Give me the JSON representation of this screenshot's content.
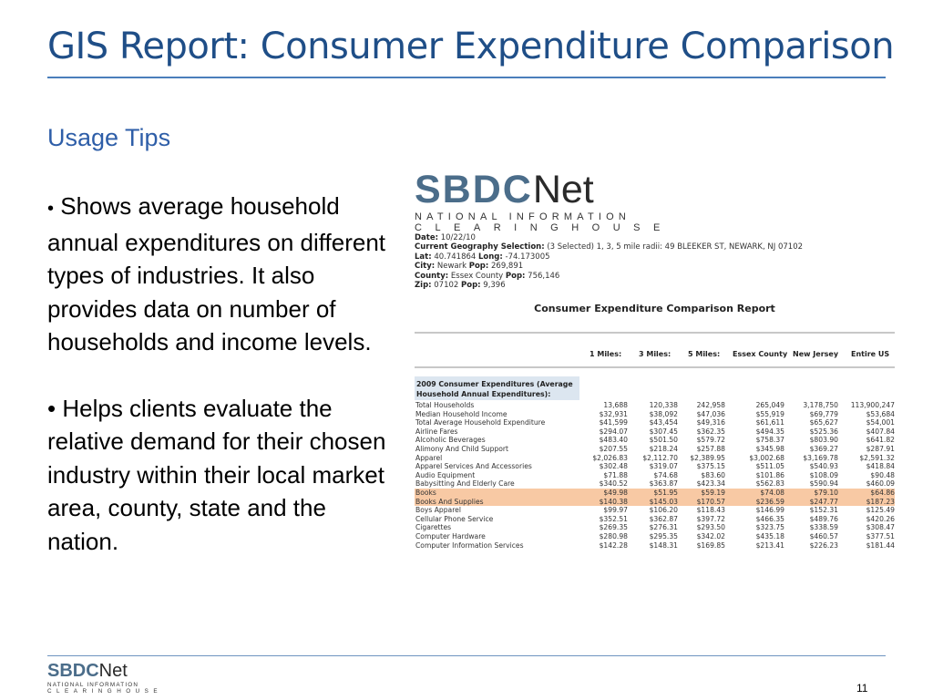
{
  "slide": {
    "title": "GIS Report: Consumer Expenditure Comparison",
    "usage_heading": "Usage Tips",
    "bullets": [
      "Shows average household annual expenditures on different types of industries. It also provides data on number of households and income levels.",
      "Helps clients evaluate the relative demand for their chosen industry within their local market area, county, state and the nation."
    ],
    "page_number": "11"
  },
  "logo": {
    "main_bold": "SBDC",
    "main_light": "Net",
    "line1": "NATIONAL INFORMATION",
    "line2": "CLEARINGHOUSE"
  },
  "report": {
    "meta": [
      {
        "label": "Date:",
        "value": " 10/22/10"
      },
      {
        "label": "Current Geography Selection:",
        "value": " (3 Selected) 1, 3, 5 mile radii: 49 BLEEKER ST, NEWARK, NJ 07102"
      },
      {
        "label": "Lat:",
        "value": " 40.741864 ",
        "label2": "Long:",
        "value2": " -74.173005"
      },
      {
        "label": "City:",
        "value": " Newark ",
        "label2": "Pop:",
        "value2": " 269,891"
      },
      {
        "label": "County:",
        "value": " Essex County ",
        "label2": "Pop:",
        "value2": " 756,146"
      },
      {
        "label": "Zip:",
        "value": " 07102 ",
        "label2": "Pop:",
        "value2": " 9,396"
      }
    ],
    "title": "Consumer Expenditure Comparison Report",
    "columns": [
      "1 Miles:",
      "3 Miles:",
      "5 Miles:",
      "Essex County",
      "New Jersey",
      "Entire US"
    ],
    "section_heading": "2009 Consumer Expenditures (Average Household Annual Expenditures):",
    "rows": [
      {
        "label": "Total Households",
        "values": [
          "13,688",
          "120,338",
          "242,958",
          "265,049",
          "3,178,750",
          "113,900,247"
        ],
        "highlight": false
      },
      {
        "label": "Median Household Income",
        "values": [
          "$32,931",
          "$38,092",
          "$47,036",
          "$55,919",
          "$69,779",
          "$53,684"
        ],
        "highlight": false
      },
      {
        "label": "Total Average Household Expenditure",
        "values": [
          "$41,599",
          "$43,454",
          "$49,316",
          "$61,611",
          "$65,627",
          "$54,001"
        ],
        "highlight": false
      },
      {
        "label": "Airline Fares",
        "values": [
          "$294.07",
          "$307.45",
          "$362.35",
          "$494.35",
          "$525.36",
          "$407.84"
        ],
        "highlight": false
      },
      {
        "label": "Alcoholic Beverages",
        "values": [
          "$483.40",
          "$501.50",
          "$579.72",
          "$758.37",
          "$803.90",
          "$641.82"
        ],
        "highlight": false
      },
      {
        "label": "Alimony And Child Support",
        "values": [
          "$207.55",
          "$218.24",
          "$257.88",
          "$345.98",
          "$369.27",
          "$287.91"
        ],
        "highlight": false
      },
      {
        "label": "Apparel",
        "values": [
          "$2,026.83",
          "$2,112.70",
          "$2,389.95",
          "$3,002.68",
          "$3,169.78",
          "$2,591.32"
        ],
        "highlight": false
      },
      {
        "label": "Apparel Services And Accessories",
        "values": [
          "$302.48",
          "$319.07",
          "$375.15",
          "$511.05",
          "$540.93",
          "$418.84"
        ],
        "highlight": false
      },
      {
        "label": "Audio Equipment",
        "values": [
          "$71.88",
          "$74.68",
          "$83.60",
          "$101.86",
          "$108.09",
          "$90.48"
        ],
        "highlight": false
      },
      {
        "label": "Babysitting And Elderly Care",
        "values": [
          "$340.52",
          "$363.87",
          "$423.34",
          "$562.83",
          "$590.94",
          "$460.09"
        ],
        "highlight": false
      },
      {
        "label": "Books",
        "values": [
          "$49.98",
          "$51.95",
          "$59.19",
          "$74.08",
          "$79.10",
          "$64.86"
        ],
        "highlight": true
      },
      {
        "label": "Books And Supplies",
        "values": [
          "$140.38",
          "$145.03",
          "$170.57",
          "$236.59",
          "$247.77",
          "$187.23"
        ],
        "highlight": true
      },
      {
        "label": "Boys Apparel",
        "values": [
          "$99.97",
          "$106.20",
          "$118.43",
          "$146.99",
          "$152.31",
          "$125.49"
        ],
        "highlight": false
      },
      {
        "label": "Cellular Phone Service",
        "values": [
          "$352.51",
          "$362.87",
          "$397.72",
          "$466.35",
          "$489.76",
          "$420.26"
        ],
        "highlight": false
      },
      {
        "label": "Cigarettes",
        "values": [
          "$269.35",
          "$276.31",
          "$293.50",
          "$323.75",
          "$338.59",
          "$308.47"
        ],
        "highlight": false
      },
      {
        "label": "Computer Hardware",
        "values": [
          "$280.98",
          "$295.35",
          "$342.02",
          "$435.18",
          "$460.57",
          "$377.51"
        ],
        "highlight": false
      },
      {
        "label": "Computer Information Services",
        "values": [
          "$142.28",
          "$148.31",
          "$169.85",
          "$213.41",
          "$226.23",
          "$181.44"
        ],
        "highlight": false
      }
    ]
  },
  "colors": {
    "title": "#1f4e87",
    "accent_rule": "#4a7ebb",
    "usage_heading": "#2e5ea8",
    "highlight_row": "#f8c9a4",
    "section_head_bg": "#dce6f0"
  }
}
